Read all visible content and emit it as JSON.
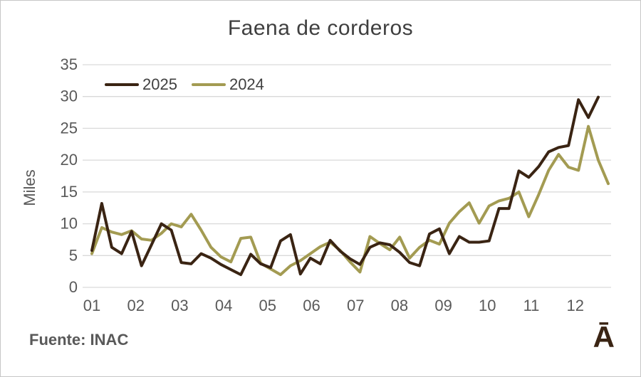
{
  "colors": {
    "accent_dark": "#3a2413",
    "olive": "#a39b52",
    "grid": "#d9d9d9",
    "axis_text": "#595959",
    "title_text": "#3f3f3f"
  },
  "footer": {
    "source": "Fuente: INAC",
    "watermark": "Ā"
  },
  "chart_data": {
    "type": "line",
    "title": "Faena de corderos",
    "xlabel": "",
    "ylabel": "Miles",
    "ylim": [
      0,
      35
    ],
    "y_ticks": [
      0,
      5,
      10,
      15,
      20,
      25,
      30,
      35
    ],
    "x_labels": [
      "01",
      "02",
      "03",
      "04",
      "05",
      "06",
      "07",
      "08",
      "09",
      "10",
      "11",
      "12"
    ],
    "x_unit": "weeks (weekly slaughter data, labelled by month)",
    "grid": "horizontal",
    "legend_position": "top-left-inside",
    "series": [
      {
        "name": "2025",
        "color": "#3a2413",
        "values": [
          5.8,
          13.2,
          6.3,
          5.3,
          8.8,
          3.4,
          6.7,
          10.0,
          9.0,
          3.9,
          3.7,
          5.3,
          4.6,
          3.6,
          2.8,
          2.0,
          5.2,
          3.7,
          3.1,
          7.3,
          8.3,
          2.1,
          4.6,
          3.7,
          7.4,
          5.7,
          4.5,
          3.6,
          6.3,
          7.0,
          6.7,
          5.5,
          3.9,
          3.4,
          8.4,
          9.2,
          5.3,
          8.0,
          7.1,
          7.1,
          7.3,
          12.4,
          12.4,
          18.3,
          17.3,
          19.0,
          21.3,
          22.0,
          22.3,
          29.5,
          26.7,
          29.9
        ]
      },
      {
        "name": "2024",
        "color": "#a39b52",
        "values": [
          5.3,
          9.4,
          8.7,
          8.3,
          8.9,
          7.6,
          7.4,
          8.5,
          10.0,
          9.5,
          11.5,
          9.0,
          6.3,
          4.8,
          4.0,
          7.7,
          7.9,
          3.8,
          2.9,
          2.0,
          3.4,
          4.2,
          5.3,
          6.4,
          7.1,
          5.8,
          4.0,
          2.4,
          8.0,
          6.9,
          5.9,
          7.9,
          4.6,
          6.3,
          7.4,
          6.8,
          10.1,
          11.9,
          13.3,
          10.1,
          12.8,
          13.6,
          14.0,
          15.0,
          11.1,
          14.6,
          18.4,
          20.9,
          18.9,
          18.4,
          25.3,
          20.0,
          16.3
        ]
      }
    ]
  }
}
